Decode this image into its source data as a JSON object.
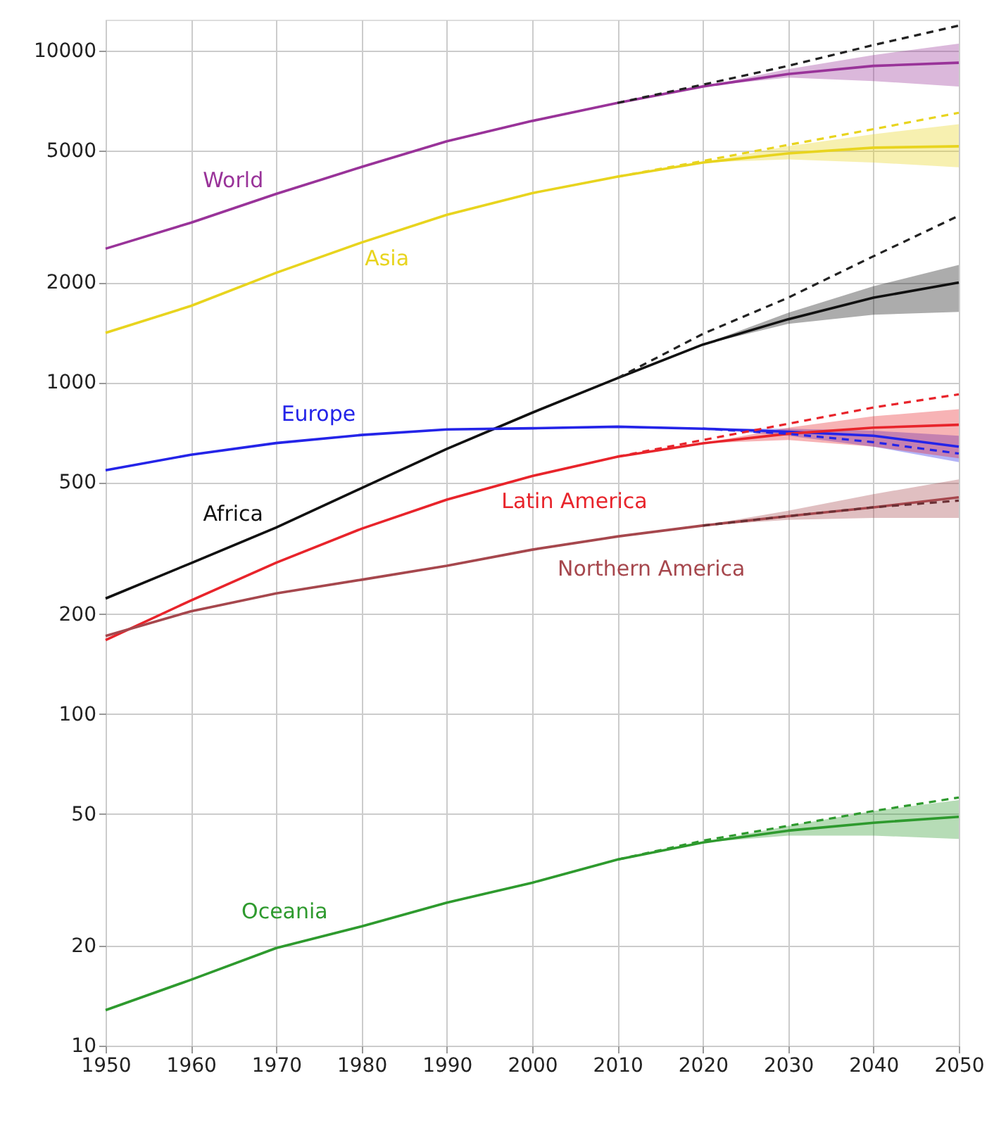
{
  "chart_data": {
    "type": "line",
    "log": "y",
    "grid": true,
    "xlim": [
      1950,
      2050
    ],
    "ylim": [
      10,
      12400
    ],
    "xticks": [
      1950,
      1960,
      1970,
      1980,
      1990,
      2000,
      2010,
      2020,
      2030,
      2040,
      2050
    ],
    "yticks": [
      10,
      20,
      50,
      100,
      200,
      500,
      1000,
      2000,
      5000,
      10000
    ],
    "x": [
      1950,
      1960,
      1970,
      1980,
      1990,
      2000,
      2010,
      2020,
      2030,
      2040,
      2050
    ],
    "series": [
      {
        "name": "World",
        "color": "#993399",
        "values": [
          2530,
          3030,
          3700,
          4460,
          5330,
          6140,
          6960,
          7800,
          8500,
          9000,
          9200
        ],
        "lower": [
          null,
          null,
          null,
          null,
          null,
          null,
          null,
          7800,
          8300,
          8100,
          7800
        ],
        "upper": [
          null,
          null,
          null,
          null,
          null,
          null,
          null,
          7800,
          8800,
          9700,
          10500
        ]
      },
      {
        "name": "Asia",
        "color": "#e8d41e",
        "values": [
          1410,
          1700,
          2140,
          2640,
          3200,
          3720,
          4170,
          4600,
          4900,
          5100,
          5150
        ],
        "lower": [
          null,
          null,
          null,
          null,
          null,
          null,
          null,
          4600,
          4700,
          4600,
          4450
        ],
        "upper": [
          null,
          null,
          null,
          null,
          null,
          null,
          null,
          4600,
          5150,
          5600,
          6000
        ]
      },
      {
        "name": "Africa",
        "color": "#111111",
        "values": [
          223,
          285,
          365,
          480,
          630,
          810,
          1030,
          1300,
          1550,
          1800,
          2000
        ],
        "lower": [
          null,
          null,
          null,
          null,
          null,
          null,
          null,
          1300,
          1500,
          1600,
          1630
        ],
        "upper": [
          null,
          null,
          null,
          null,
          null,
          null,
          null,
          1300,
          1620,
          1950,
          2260
        ]
      },
      {
        "name": "Europe",
        "color": "#2424e8",
        "values": [
          543,
          605,
          656,
          694,
          721,
          727,
          735,
          725,
          710,
          690,
          640
        ],
        "lower": [
          null,
          null,
          null,
          null,
          null,
          null,
          null,
          725,
          690,
          640,
          575
        ],
        "upper": [
          null,
          null,
          null,
          null,
          null,
          null,
          null,
          725,
          725,
          715,
          690
        ]
      },
      {
        "name": "Latin America",
        "color": "#e8242b",
        "values": [
          167,
          220,
          286,
          362,
          443,
          522,
          597,
          655,
          700,
          730,
          745
        ],
        "lower": [
          null,
          null,
          null,
          null,
          null,
          null,
          null,
          655,
          670,
          640,
          590
        ],
        "upper": [
          null,
          null,
          null,
          null,
          null,
          null,
          null,
          655,
          730,
          790,
          830
        ]
      },
      {
        "name": "Northern America",
        "color": "#a6474d",
        "values": [
          172,
          204,
          231,
          254,
          280,
          313,
          343,
          370,
          395,
          420,
          450
        ],
        "lower": [
          null,
          null,
          null,
          null,
          null,
          null,
          null,
          370,
          385,
          390,
          390
        ],
        "upper": [
          null,
          null,
          null,
          null,
          null,
          null,
          null,
          370,
          410,
          460,
          510
        ]
      },
      {
        "name": "Oceania",
        "color": "#2e9a2e",
        "values": [
          12.8,
          15.8,
          19.7,
          22.9,
          27,
          31,
          36.4,
          41,
          44.5,
          47,
          49
        ],
        "lower": [
          null,
          null,
          null,
          null,
          null,
          null,
          null,
          41,
          43,
          43,
          42
        ],
        "upper": [
          null,
          null,
          null,
          null,
          null,
          null,
          null,
          41,
          46,
          51,
          55
        ]
      },
      {
        "color": "#222222",
        "line_style": "dashed",
        "x": [
          2010,
          2020,
          2030,
          2040,
          2050
        ],
        "values": [
          6960,
          7900,
          9000,
          10400,
          11900
        ]
      },
      {
        "color": "#e8d41e",
        "line_style": "dashed",
        "x": [
          2010,
          2020,
          2030,
          2040,
          2050
        ],
        "values": [
          4170,
          4650,
          5200,
          5800,
          6500
        ]
      },
      {
        "color": "#222222",
        "line_style": "dashed",
        "x": [
          2010,
          2020,
          2030,
          2040,
          2050
        ],
        "values": [
          1030,
          1400,
          1800,
          2400,
          3180
        ]
      },
      {
        "color": "#2424e8",
        "line_style": "dashed",
        "x": [
          2020,
          2030,
          2040,
          2050
        ],
        "values": [
          725,
          700,
          660,
          610
        ]
      },
      {
        "color": "#e8242b",
        "line_style": "dashed",
        "x": [
          2010,
          2020,
          2030,
          2040,
          2050
        ],
        "values": [
          597,
          670,
          750,
          840,
          920
        ]
      },
      {
        "color": "#6b3035",
        "line_style": "dashed",
        "x": [
          2020,
          2030,
          2040,
          2050
        ],
        "values": [
          370,
          395,
          420,
          440
        ]
      },
      {
        "color": "#2e9a2e",
        "line_style": "dashed",
        "x": [
          2010,
          2020,
          2030,
          2040,
          2050
        ],
        "values": [
          36.4,
          41.5,
          46,
          51,
          56
        ]
      }
    ]
  }
}
